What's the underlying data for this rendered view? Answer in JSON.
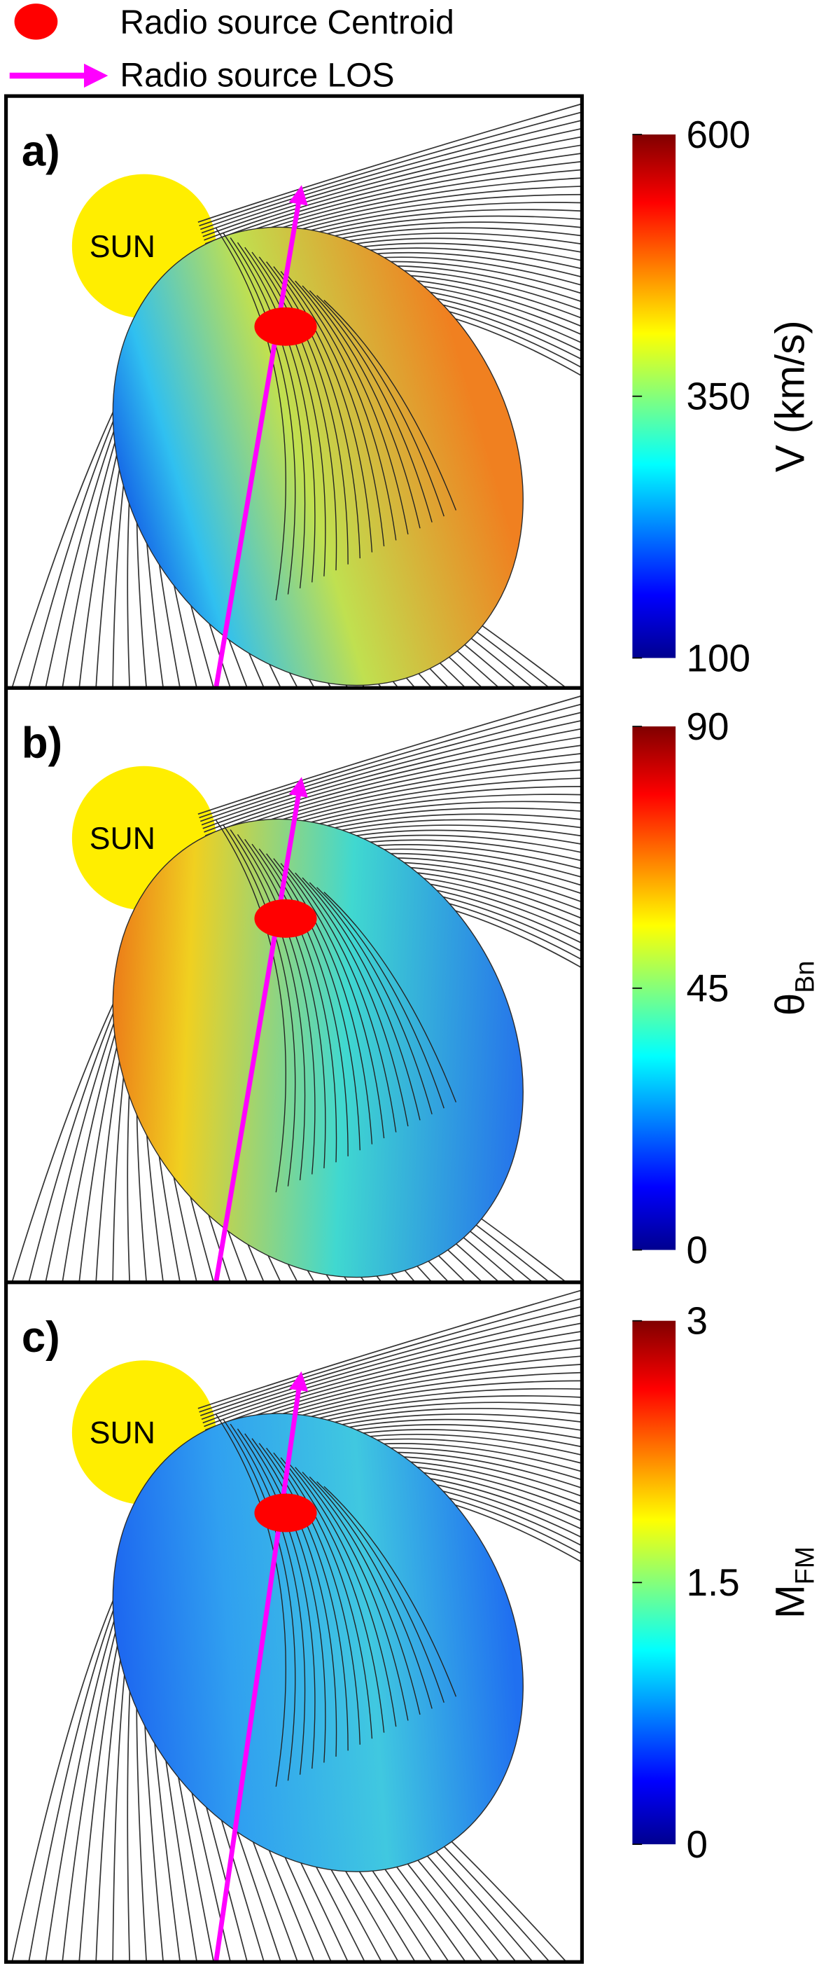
{
  "legend": [
    {
      "label": "Radio source Centroid",
      "color": "#ff0000"
    },
    {
      "label": "Radio source LOS",
      "color": "#ff00ff"
    }
  ],
  "panels": [
    {
      "label": "a)",
      "sun_label": "SUN",
      "colorbar": {
        "label": {
          "main": "V (km/s)"
        },
        "lim": [
          100,
          600
        ],
        "ticks": [
          100,
          350,
          600
        ]
      }
    },
    {
      "label": "b)",
      "sun_label": "SUN",
      "colorbar": {
        "label": {
          "main": "θ",
          "sub": "Bn"
        },
        "lim": [
          0,
          90
        ],
        "ticks": [
          0,
          45,
          90
        ]
      }
    },
    {
      "label": "c)",
      "sun_label": "SUN",
      "colorbar": {
        "label": {
          "main": "M",
          "sub": "FM"
        },
        "lim": [
          0,
          3
        ],
        "ticks": [
          0,
          1.5,
          3
        ]
      }
    }
  ]
}
